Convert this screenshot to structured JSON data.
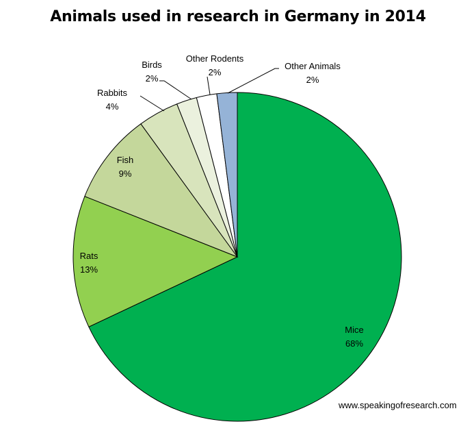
{
  "chart_data": {
    "type": "pie",
    "title": "Animals used in research in Germany in 2014",
    "start_angle": "12 o'clock",
    "direction": "clockwise",
    "slices": [
      {
        "label": "Mice",
        "value": 68,
        "display": "68%",
        "color": "#00b050"
      },
      {
        "label": "Rats",
        "value": 13,
        "display": "13%",
        "color": "#92d050"
      },
      {
        "label": "Fish",
        "value": 9,
        "display": "9%",
        "color": "#c4d79b"
      },
      {
        "label": "Rabbits",
        "value": 4,
        "display": "4%",
        "color": "#d8e4bc"
      },
      {
        "label": "Birds",
        "value": 2,
        "display": "2%",
        "color": "#ebf1de"
      },
      {
        "label": "Other Rodents",
        "value": 2,
        "display": "2%",
        "color": "#ffffff"
      },
      {
        "label": "Other Animals",
        "value": 2,
        "display": "2%",
        "color": "#95b3d7"
      }
    ]
  },
  "credit": "www.speakingofresearch.com"
}
